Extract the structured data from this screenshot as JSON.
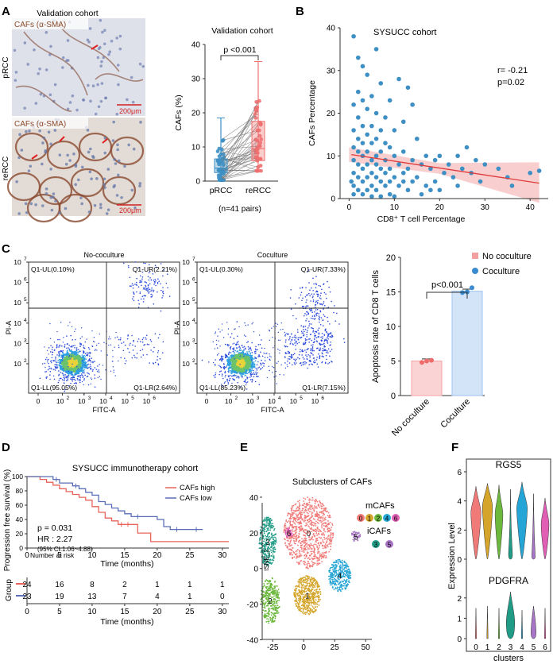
{
  "panels": {
    "A": "A",
    "B": "B",
    "C": "C",
    "D": "D",
    "E": "E",
    "F": "F"
  },
  "panel_a": {
    "cohort_title": "Validation cohort",
    "stain_top": "CAFs (α-SMA)",
    "stain_bottom": "CAFs (α-SMA)",
    "row_top": "pRCC",
    "row_bottom": "reRCC",
    "scale_top": "200μm",
    "scale_bottom": "200μm"
  },
  "chart_a": {
    "type": "box-paired",
    "title": "Validation cohort",
    "ylabel": "CAFs (%)",
    "categories": [
      "pRCC",
      "reRCC"
    ],
    "subtitle": "(n=41 pairs)",
    "pvalue": "p <0.001",
    "ylim": [
      0,
      40
    ],
    "yticks": [
      "0",
      "10",
      "20",
      "30",
      "40"
    ],
    "boxes": [
      {
        "name": "pRCC",
        "min": 0,
        "q1": 2.5,
        "median": 3.8,
        "q3": 6.5,
        "max": 18.5,
        "color": "#3d8fc4"
      },
      {
        "name": "reRCC",
        "min": 3,
        "q1": 6,
        "median": 9.5,
        "q3": 17.5,
        "max": 35,
        "color": "#f07070"
      }
    ]
  },
  "chart_b": {
    "type": "scatter",
    "title": "SYSUCC cohort",
    "xlabel": "CD8⁺ T cell Percentage",
    "ylabel": "CAFs Percentage",
    "xlim": [
      -2,
      44
    ],
    "ylim": [
      0,
      40
    ],
    "xticks": [
      "0",
      "10",
      "20",
      "30",
      "40"
    ],
    "yticks": [
      "0",
      "10",
      "20",
      "30",
      "40"
    ],
    "stat_r": "r= -0.21",
    "stat_p": "p=0.02",
    "fit": {
      "x0": 0.5,
      "y0": 10.3,
      "x1": 42,
      "y1": 3.6
    },
    "points": [
      [
        1,
        38
      ],
      [
        6,
        35
      ],
      [
        2,
        33
      ],
      [
        3,
        31
      ],
      [
        4,
        29
      ],
      [
        11,
        28
      ],
      [
        7,
        27
      ],
      [
        13,
        26
      ],
      [
        2,
        25
      ],
      [
        5,
        24
      ],
      [
        3,
        23
      ],
      [
        9,
        23
      ],
      [
        14,
        22
      ],
      [
        1,
        22
      ],
      [
        4,
        21
      ],
      [
        6,
        20
      ],
      [
        2,
        19
      ],
      [
        8,
        19
      ],
      [
        12,
        18
      ],
      [
        3,
        17
      ],
      [
        5,
        17
      ],
      [
        1,
        16
      ],
      [
        7,
        16
      ],
      [
        10,
        16
      ],
      [
        4,
        15
      ],
      [
        2,
        14
      ],
      [
        6,
        14
      ],
      [
        15,
        14
      ],
      [
        8,
        13
      ],
      [
        3,
        13
      ],
      [
        5,
        13
      ],
      [
        26,
        12
      ],
      [
        1,
        12
      ],
      [
        9,
        12
      ],
      [
        2,
        11
      ],
      [
        4,
        11
      ],
      [
        7,
        11
      ],
      [
        12,
        11
      ],
      [
        3,
        10
      ],
      [
        6,
        10
      ],
      [
        10,
        10
      ],
      [
        17,
        10
      ],
      [
        20,
        10
      ],
      [
        24,
        10
      ],
      [
        1,
        9
      ],
      [
        5,
        9
      ],
      [
        8,
        9
      ],
      [
        14,
        9
      ],
      [
        19,
        9
      ],
      [
        28,
        9
      ],
      [
        2,
        8
      ],
      [
        4,
        8
      ],
      [
        6,
        8
      ],
      [
        11,
        8
      ],
      [
        16,
        8
      ],
      [
        22,
        8
      ],
      [
        30,
        8
      ],
      [
        3,
        7
      ],
      [
        7,
        7
      ],
      [
        9,
        7
      ],
      [
        13,
        7
      ],
      [
        18,
        7
      ],
      [
        25,
        7
      ],
      [
        33,
        7
      ],
      [
        1,
        6
      ],
      [
        5,
        6
      ],
      [
        8,
        6
      ],
      [
        12,
        6
      ],
      [
        21,
        6
      ],
      [
        27,
        6
      ],
      [
        40,
        6
      ],
      [
        42,
        6.5
      ],
      [
        2,
        5
      ],
      [
        4,
        5
      ],
      [
        6,
        5
      ],
      [
        10,
        5
      ],
      [
        15,
        5
      ],
      [
        23,
        5
      ],
      [
        35,
        5
      ],
      [
        3,
        4
      ],
      [
        7,
        4
      ],
      [
        9,
        4
      ],
      [
        14,
        4
      ],
      [
        19,
        4
      ],
      [
        29,
        4
      ],
      [
        1,
        3
      ],
      [
        5,
        3
      ],
      [
        8,
        3
      ],
      [
        11,
        3
      ],
      [
        17,
        3
      ],
      [
        24,
        3
      ],
      [
        36,
        3
      ],
      [
        2,
        2
      ],
      [
        4,
        2
      ],
      [
        6,
        2
      ],
      [
        13,
        2
      ],
      [
        20,
        2
      ],
      [
        1,
        1
      ],
      [
        3,
        1
      ],
      [
        9,
        1
      ],
      [
        16,
        1
      ],
      [
        5,
        0.5
      ],
      [
        7,
        0.5
      ],
      [
        10,
        0.5
      ],
      [
        0.5,
        4
      ],
      [
        12,
        4
      ],
      [
        18,
        2
      ]
    ]
  },
  "panel_c": {
    "left_title": "No-coculture",
    "right_title": "Coculture",
    "xlabel": "FITC-A",
    "ylabel": "PI-A",
    "axis_base": "10",
    "tick_exps": [
      "0",
      "2",
      "3",
      "4",
      "5",
      "6",
      "7"
    ],
    "left": {
      "ul": "Q1-UL(0.10%)",
      "ur": "Q1-UR(2.21%)",
      "ll": "Q1-LL(95.05%)",
      "lr": "Q1-LR(2.64%)"
    },
    "right": {
      "ul": "Q1-UL(0.30%)",
      "ur": "Q1-UR(7.33%)",
      "ll": "Q1-LL(85.23%)",
      "lr": "Q1-LR(7.15%)"
    }
  },
  "chart_c": {
    "type": "bar",
    "ylabel": "Apoptosis rate of CD8 T cells",
    "categories": [
      "No coculture",
      "Coculture"
    ],
    "values": [
      5.0,
      15.1
    ],
    "points": [
      [
        4.8,
        5.0,
        5.1
      ],
      [
        14.9,
        15.0,
        15.6
      ]
    ],
    "colors": [
      "#f5a0a0",
      "#9ec3f0"
    ],
    "point_colors": [
      "#ee6b6b",
      "#3b8bd0"
    ],
    "ylim": [
      0,
      20
    ],
    "yticks": [
      "0",
      "5",
      "10",
      "15",
      "20"
    ],
    "pvalue": "p<0.001",
    "legend": [
      "No coculture",
      "Coculture"
    ]
  },
  "chart_d": {
    "type": "km",
    "title": "SYSUCC immunotherapy cohort",
    "ylabel": "Progression free survival (%)",
    "xlabel": "Time (months)",
    "xlim": [
      0,
      31
    ],
    "ylim": [
      0,
      100
    ],
    "xticks": [
      "0",
      "5",
      "10",
      "15",
      "20",
      "25",
      "30"
    ],
    "yticks": [
      "0",
      "20",
      "40",
      "60",
      "80",
      "100"
    ],
    "legend": [
      "CAFs high",
      "CAFs low"
    ],
    "colors": [
      "#e8645a",
      "#5a6fb8"
    ],
    "pvalue": "p = 0.031",
    "hr": "HR : 2.27",
    "ci": "(95% CI:1.06~4.88)",
    "high_steps": [
      [
        0,
        100
      ],
      [
        2,
        96
      ],
      [
        3,
        92
      ],
      [
        4,
        88
      ],
      [
        5,
        83
      ],
      [
        6,
        79
      ],
      [
        7,
        75
      ],
      [
        8,
        71
      ],
      [
        9,
        67
      ],
      [
        10,
        58
      ],
      [
        11,
        50
      ],
      [
        12,
        42
      ],
      [
        13,
        38
      ],
      [
        14,
        33
      ],
      [
        17,
        21
      ],
      [
        19,
        9
      ],
      [
        31,
        9
      ]
    ],
    "low_steps": [
      [
        0,
        100
      ],
      [
        4,
        96
      ],
      [
        5,
        91
      ],
      [
        7,
        87
      ],
      [
        8,
        83
      ],
      [
        9,
        78
      ],
      [
        10,
        74
      ],
      [
        11,
        65
      ],
      [
        12,
        61
      ],
      [
        13,
        56
      ],
      [
        14,
        52
      ],
      [
        15,
        48
      ],
      [
        16,
        44
      ],
      [
        20,
        40
      ],
      [
        21,
        30
      ],
      [
        22,
        26
      ],
      [
        27,
        26
      ]
    ],
    "censor_high": [
      14.5,
      15.5
    ],
    "censor_low": [
      4.5,
      7.5,
      17,
      23,
      26
    ],
    "risk_title": "Number at risk",
    "group_label": "Group",
    "risk_high": [
      "24",
      "16",
      "8",
      "2",
      "1",
      "1",
      "1"
    ],
    "risk_low": [
      "23",
      "19",
      "13",
      "7",
      "4",
      "1",
      "0"
    ]
  },
  "chart_e": {
    "type": "scatter-clusters",
    "title": "Subclusters of CAFs",
    "ylabel": "tSNE_2",
    "xlim": [
      -45,
      55
    ],
    "ylim": [
      -42,
      48
    ],
    "xticks": [
      "-25",
      "0",
      "25",
      "50"
    ],
    "yticks": [
      "-40",
      "-20",
      "0",
      "20",
      "40"
    ],
    "legend_m": "mCAFs",
    "legend_i": "iCAFs",
    "clusters": [
      {
        "id": "0",
        "cx": 4,
        "cy": 20,
        "rx": 20,
        "ry": 20,
        "color": "#f07a78",
        "n": 900
      },
      {
        "id": "1",
        "cx": 3,
        "cy": -15,
        "rx": 11,
        "ry": 11,
        "color": "#d4a52a",
        "n": 500
      },
      {
        "id": "2",
        "cx": -27,
        "cy": -18,
        "rx": 8,
        "ry": 13,
        "color": "#6bb83c",
        "n": 330
      },
      {
        "id": "3",
        "cx": -29,
        "cy": 15,
        "rx": 7,
        "ry": 14,
        "color": "#1f9b86",
        "n": 330
      },
      {
        "id": "4",
        "cx": 29,
        "cy": -4,
        "rx": 9,
        "ry": 9,
        "color": "#25a5d5",
        "n": 330
      },
      {
        "id": "5",
        "cx": 42,
        "cy": 18,
        "rx": 4,
        "ry": 3,
        "color": "#a874c6",
        "n": 50
      },
      {
        "id": "6",
        "cx": -12,
        "cy": 20,
        "rx": 3,
        "ry": 3,
        "color": "#e05fb5",
        "n": 45
      }
    ],
    "legend_m_ids": [
      "0",
      "1",
      "2",
      "4",
      "6"
    ],
    "legend_i_ids": [
      "3",
      "5"
    ]
  },
  "chart_f": {
    "type": "violin",
    "ylabel": "Expression Level",
    "xlabel": "clusters",
    "categories": [
      "0",
      "1",
      "2",
      "3",
      "4",
      "5",
      "6"
    ],
    "colors": [
      "#f07a78",
      "#d4a52a",
      "#6bb83c",
      "#1f9b86",
      "#25a5d5",
      "#a874c6",
      "#e05fb5"
    ],
    "genes": [
      {
        "name": "RGS5",
        "ymax": 6,
        "yticks": [
          "0",
          "2",
          "4",
          "6"
        ],
        "peaks": [
          3.2,
          3.6,
          3.1,
          0.3,
          3.5,
          0.2,
          2.4
        ],
        "tops": [
          5.0,
          5.2,
          5.1,
          4.8,
          5.3,
          4.5,
          4.2
        ],
        "widths": [
          0.9,
          0.9,
          0.7,
          0.35,
          0.95,
          0.3,
          0.7
        ]
      },
      {
        "name": "PDGFRA",
        "ymax": 2.5,
        "yticks": [
          "0",
          "1",
          "2"
        ],
        "peaks": [
          0,
          0,
          0,
          0.8,
          0,
          0.3,
          0
        ],
        "tops": [
          1.5,
          1.6,
          1.5,
          2.3,
          1.4,
          1.6,
          1.5
        ],
        "widths": [
          0.1,
          0.1,
          0.1,
          0.75,
          0.1,
          0.45,
          0.1
        ]
      }
    ]
  }
}
